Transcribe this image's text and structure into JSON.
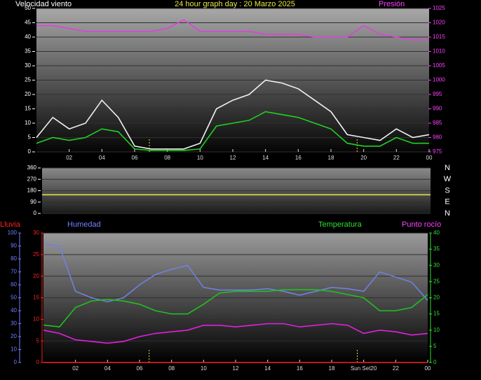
{
  "chart_data": [
    {
      "type": "line",
      "title": "24 hour graph day : 20 Marzo 2025",
      "x": [
        0,
        1,
        2,
        3,
        4,
        5,
        6,
        7,
        8,
        9,
        10,
        11,
        12,
        13,
        14,
        15,
        16,
        17,
        18,
        19,
        20,
        21,
        22,
        23,
        24
      ],
      "xlim": [
        0,
        24
      ],
      "xticks": [
        {
          "value": 2,
          "label": "02"
        },
        {
          "value": 4,
          "label": "04"
        },
        {
          "value": 6,
          "label": "06"
        },
        {
          "value": 8,
          "label": "08"
        },
        10,
        12,
        14,
        16,
        18,
        20,
        22,
        {
          "value": 24,
          "label": "00"
        }
      ],
      "axes": [
        {
          "label": "Velocidad viento",
          "color": "#ffffff",
          "side": "left",
          "lim": [
            0,
            50
          ],
          "ticks": [
            0,
            5,
            10,
            15,
            20,
            25,
            30,
            35,
            40,
            45,
            50
          ]
        },
        {
          "label": "Presión",
          "color": "#ff40ff",
          "side": "right",
          "lim": [
            975,
            1025
          ],
          "ticks": [
            975,
            980,
            985,
            990,
            995,
            1000,
            1005,
            1010,
            1015,
            1020,
            1025
          ]
        }
      ],
      "series": [
        {
          "color": "#f0f0f0",
          "axis": 0,
          "values": [
            5,
            12,
            8,
            10,
            18,
            12,
            2,
            1,
            1,
            1,
            3,
            15,
            18,
            20,
            25,
            24,
            22,
            18,
            14,
            6,
            5,
            4,
            8,
            5,
            6
          ]
        },
        {
          "color": "#20d020",
          "axis": 0,
          "values": [
            3,
            5,
            4,
            5,
            8,
            7,
            1,
            0.5,
            0.5,
            0.5,
            1,
            9,
            10,
            11,
            14,
            13,
            12,
            10,
            8,
            3,
            2,
            2,
            5,
            3,
            3
          ]
        },
        {
          "color": "#e040e0",
          "axis": 1,
          "values": [
            1019,
            1019,
            1018,
            1017,
            1017,
            1017,
            1017,
            1017,
            1018,
            1021,
            1017,
            1017,
            1017,
            1017,
            1016,
            1016,
            1016,
            1015,
            1015,
            1015,
            1019,
            1016,
            1015,
            1014,
            1014
          ]
        }
      ],
      "sun_markers": [
        6.9,
        19.6
      ]
    },
    {
      "type": "line",
      "x": [
        0,
        1,
        2,
        3,
        4,
        5,
        6,
        7,
        8,
        9,
        10,
        11,
        12,
        13,
        14,
        15,
        16,
        17,
        18,
        19,
        20,
        21,
        22,
        23,
        24
      ],
      "xlim": [
        0,
        24
      ],
      "axes": [
        {
          "color": "#ffffff",
          "side": "left",
          "lim": [
            0,
            360
          ],
          "ticks": [
            0,
            90,
            180,
            270,
            360
          ]
        }
      ],
      "series": [
        {
          "color": "#e0e040",
          "axis": 0,
          "values": [
            148,
            148,
            148,
            148,
            148,
            148,
            148,
            148,
            148,
            148,
            148,
            148,
            148,
            148,
            148,
            148,
            148,
            148,
            148,
            148,
            148,
            148,
            148,
            148,
            148
          ]
        }
      ],
      "compass": [
        "N",
        "W",
        "S",
        "E",
        "N"
      ]
    },
    {
      "type": "line",
      "x": [
        0,
        1,
        2,
        3,
        4,
        5,
        6,
        7,
        8,
        9,
        10,
        11,
        12,
        13,
        14,
        15,
        16,
        17,
        18,
        19,
        20,
        21,
        22,
        23,
        24
      ],
      "xlim": [
        0,
        24
      ],
      "xticks": [
        {
          "value": 2,
          "label": "02"
        },
        {
          "value": 4,
          "label": "04"
        },
        {
          "value": 6,
          "label": "06"
        },
        {
          "value": 8,
          "label": "08"
        },
        10,
        12,
        14,
        16,
        18,
        {
          "value": 20,
          "label": "Sun Set20"
        },
        22,
        {
          "value": 24,
          "label": "00"
        }
      ],
      "axes": [
        {
          "label": "Lluvia",
          "color": "#ff2020",
          "side": "left",
          "lim": [
            0,
            30
          ],
          "ticks": [
            0,
            5,
            10,
            15,
            20,
            25,
            30
          ]
        },
        {
          "label": "Humedad",
          "color": "#7080ff",
          "side": "left",
          "lim": [
            0,
            100
          ],
          "ticks": [
            0,
            10,
            20,
            30,
            40,
            50,
            60,
            70,
            80,
            90,
            100
          ]
        },
        {
          "label": "Temperatura",
          "color": "#30e030",
          "side": "right",
          "lim": [
            0,
            40
          ],
          "ticks": [
            0,
            5,
            10,
            15,
            20,
            25,
            30,
            35,
            40
          ]
        },
        {
          "label": "Punto rocío",
          "color": "#ff40ff",
          "side": "right"
        }
      ],
      "series": [
        {
          "color": "#ff2020",
          "axis": 0,
          "values": [
            0,
            0,
            0,
            0,
            0,
            0,
            0,
            0,
            0,
            0,
            0,
            0,
            0,
            0,
            0,
            0,
            0,
            0,
            0,
            0,
            0,
            0,
            0,
            0,
            0
          ]
        },
        {
          "color": "#7080e0",
          "axis": 1,
          "values": [
            92,
            90,
            55,
            50,
            47,
            50,
            60,
            68,
            72,
            75,
            58,
            56,
            56,
            56,
            57,
            55,
            52,
            55,
            58,
            57,
            55,
            70,
            66,
            62,
            48
          ]
        },
        {
          "color": "#20c020",
          "axis": 2,
          "values": [
            11.6,
            11,
            17,
            19,
            19.5,
            19,
            18,
            16,
            15,
            15,
            18,
            21.5,
            22,
            22,
            22,
            22.5,
            22.5,
            22.5,
            22,
            21,
            20,
            16,
            16,
            17,
            21
          ]
        },
        {
          "color": "#e020e0",
          "axis": 2,
          "values": [
            10,
            9,
            7,
            6.5,
            6,
            6.5,
            8,
            9,
            9.5,
            10,
            11.5,
            11.5,
            11,
            11.5,
            12,
            12,
            11,
            11.5,
            12,
            11.5,
            9,
            10,
            9.5,
            8.5,
            9
          ]
        }
      ],
      "sun_markers": [
        6.6,
        19.6
      ]
    }
  ]
}
